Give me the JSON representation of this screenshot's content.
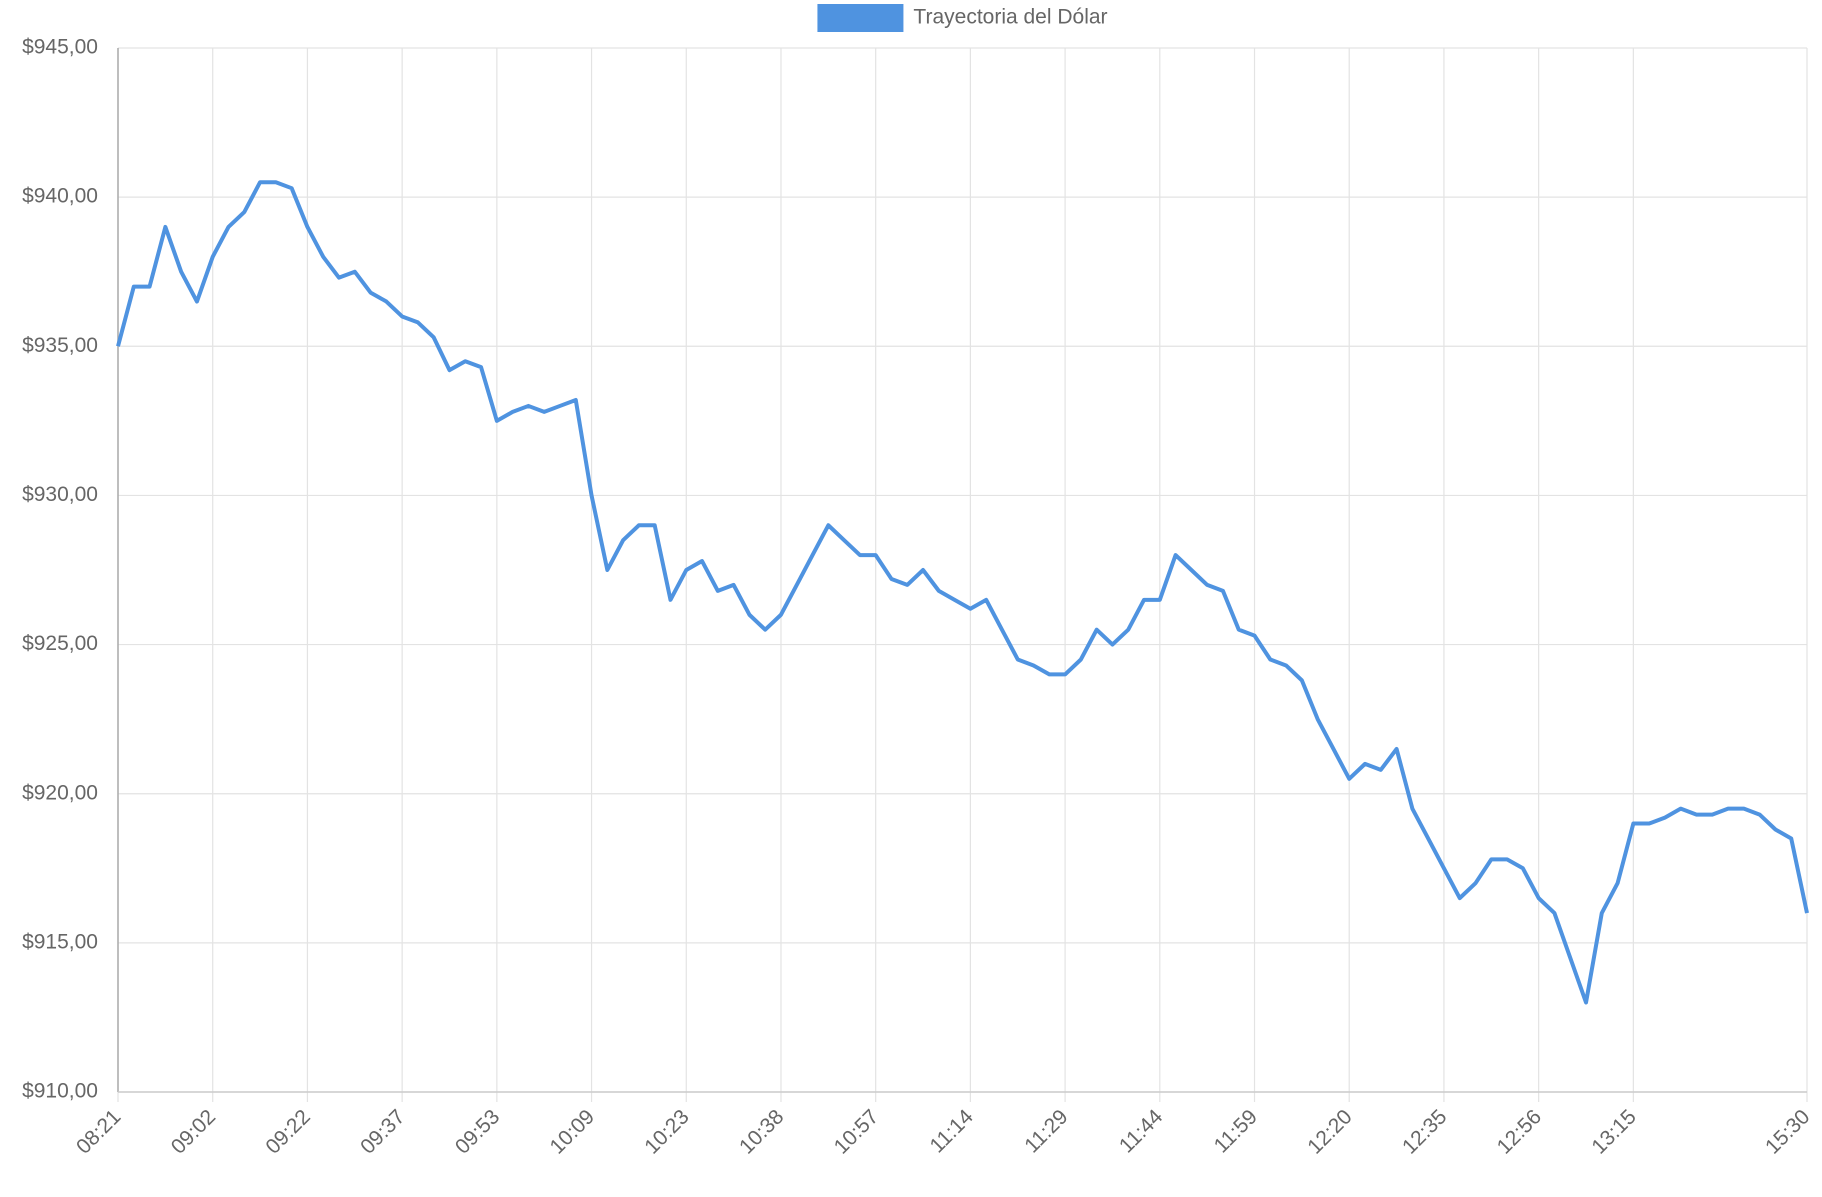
{
  "chart_data": {
    "type": "line",
    "categories": [
      "08:21",
      null,
      null,
      null,
      null,
      null,
      "09:02",
      null,
      null,
      null,
      null,
      null,
      "09:22",
      null,
      null,
      null,
      null,
      null,
      "09:37",
      null,
      null,
      null,
      null,
      null,
      "09:53",
      null,
      null,
      null,
      null,
      null,
      "10:09",
      null,
      null,
      null,
      null,
      null,
      "10:23",
      null,
      null,
      null,
      null,
      null,
      "10:38",
      null,
      null,
      null,
      null,
      null,
      "10:57",
      null,
      null,
      null,
      null,
      null,
      "11:14",
      null,
      null,
      null,
      null,
      null,
      "11:29",
      null,
      null,
      null,
      null,
      null,
      "11:44",
      null,
      null,
      null,
      null,
      null,
      "11:59",
      null,
      null,
      null,
      null,
      null,
      "12:20",
      null,
      null,
      null,
      null,
      null,
      "12:35",
      null,
      null,
      null,
      null,
      null,
      "12:56",
      null,
      null,
      null,
      null,
      null,
      "13:15",
      null,
      null,
      null,
      null,
      null,
      null,
      null,
      null,
      null,
      null,
      "15:30"
    ],
    "series": [
      {
        "name": "Trayectoria del Dólar",
        "color": "#4f93e0",
        "values": [
          935.0,
          937.0,
          937.0,
          939.0,
          937.5,
          936.5,
          938.0,
          939.0,
          939.5,
          940.5,
          940.5,
          940.3,
          939.0,
          938.0,
          937.3,
          937.5,
          936.8,
          936.5,
          936.0,
          935.8,
          935.3,
          934.2,
          934.5,
          934.3,
          932.5,
          932.8,
          933.0,
          932.8,
          933.0,
          933.2,
          930.0,
          927.5,
          928.5,
          929.0,
          929.0,
          926.5,
          927.5,
          927.8,
          926.8,
          927.0,
          926.0,
          925.5,
          926.0,
          927.0,
          928.0,
          929.0,
          928.5,
          928.0,
          928.0,
          927.2,
          927.0,
          927.5,
          926.8,
          926.5,
          926.2,
          926.5,
          925.5,
          924.5,
          924.3,
          924.0,
          924.0,
          924.5,
          925.5,
          925.0,
          925.5,
          926.5,
          926.5,
          928.0,
          927.5,
          927.0,
          926.8,
          925.5,
          925.3,
          924.5,
          924.3,
          923.8,
          922.5,
          921.5,
          920.5,
          921.0,
          920.8,
          921.5,
          919.5,
          918.5,
          917.5,
          916.5,
          917.0,
          917.8,
          917.8,
          917.5,
          916.5,
          916.0,
          914.5,
          913.0,
          916.0,
          917.0,
          919.0,
          919.0,
          919.2,
          919.5,
          919.3,
          919.3,
          919.5,
          919.5,
          919.3,
          918.8,
          918.5,
          916.0
        ]
      }
    ],
    "ylim": [
      910,
      945
    ],
    "yticks": [
      {
        "value": 910,
        "label": "$910,00"
      },
      {
        "value": 915,
        "label": "$915,00"
      },
      {
        "value": 920,
        "label": "$920,00"
      },
      {
        "value": 925,
        "label": "$925,00"
      },
      {
        "value": 930,
        "label": "$930,00"
      },
      {
        "value": 935,
        "label": "$935,00"
      },
      {
        "value": 940,
        "label": "$940,00"
      },
      {
        "value": 945,
        "label": "$945,00"
      }
    ],
    "grid": true
  }
}
